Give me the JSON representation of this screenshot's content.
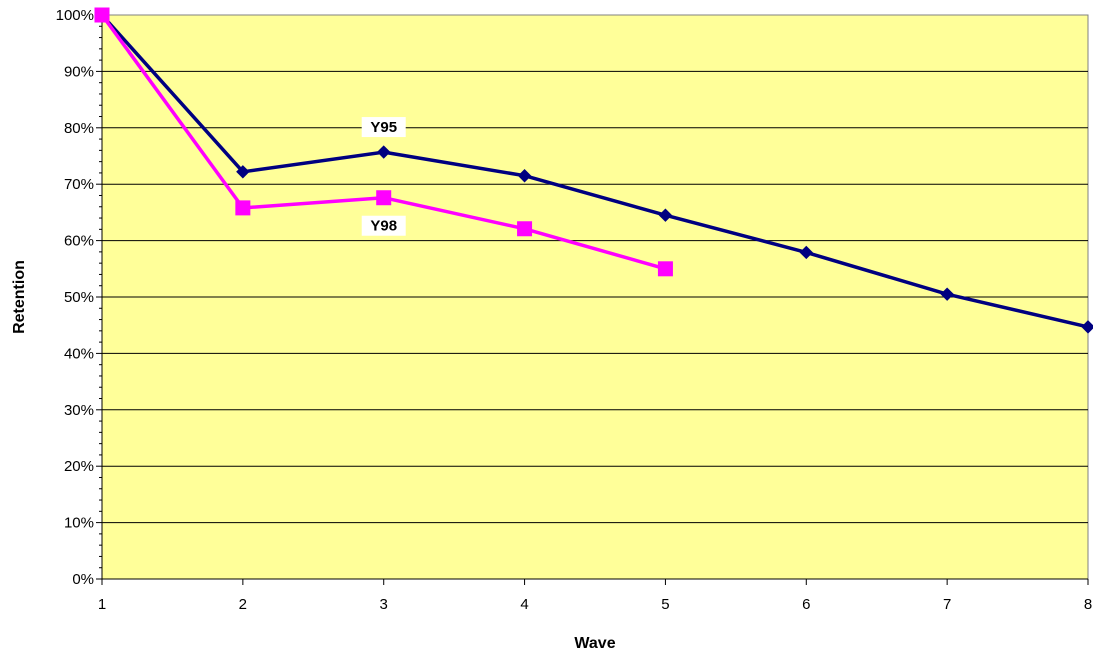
{
  "chart_data": {
    "type": "line",
    "title": "",
    "xlabel": "Wave",
    "ylabel": "Retention",
    "x": [
      1,
      2,
      3,
      4,
      5,
      6,
      7,
      8
    ],
    "xticks": [
      "1",
      "2",
      "3",
      "4",
      "5",
      "6",
      "7",
      "8"
    ],
    "xlim": [
      1,
      8
    ],
    "ylim": [
      0,
      1
    ],
    "yticks": [
      "0%",
      "10%",
      "20%",
      "30%",
      "40%",
      "50%",
      "60%",
      "70%",
      "80%",
      "90%",
      "100%"
    ],
    "grid": "horizontal",
    "legend": "none",
    "plot_background": "#FFFF99",
    "series": [
      {
        "name": "Y95",
        "color": "#000080",
        "marker": "diamond",
        "x": [
          1,
          2,
          3,
          4,
          5,
          6,
          7,
          8
        ],
        "values": [
          1.0,
          0.722,
          0.757,
          0.715,
          0.645,
          0.579,
          0.505,
          0.447
        ]
      },
      {
        "name": "Y98",
        "color": "#FF00FF",
        "marker": "square",
        "x": [
          1,
          2,
          3,
          4,
          5
        ],
        "values": [
          1.0,
          0.658,
          0.676,
          0.621,
          0.55
        ]
      }
    ]
  }
}
